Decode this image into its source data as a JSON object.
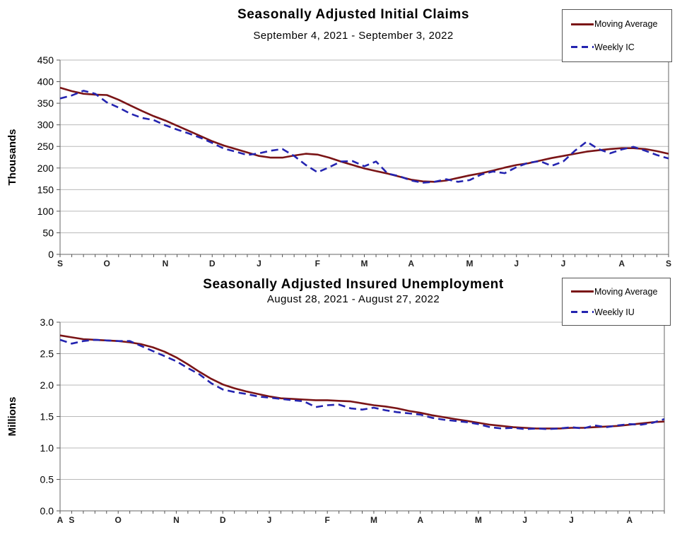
{
  "chart_data": [
    {
      "type": "line",
      "title": "Seasonally Adjusted Initial Claims",
      "subtitle": "September 4, 2021 - September 3, 2022",
      "ylabel": "Thousands",
      "ylim": [
        0,
        450
      ],
      "yticks": [
        0,
        50,
        100,
        150,
        200,
        250,
        300,
        350,
        400,
        450
      ],
      "ytick_labels": [
        "0",
        "50",
        "100",
        "150",
        "200",
        "250",
        "300",
        "350",
        "400",
        "450"
      ],
      "x_unit": "week",
      "n_points": 53,
      "month_labels": [
        "S",
        "O",
        "N",
        "D",
        "J",
        "F",
        "M",
        "A",
        "M",
        "J",
        "J",
        "A",
        "S"
      ],
      "month_week_index": [
        0,
        4,
        9,
        13,
        17,
        22,
        26,
        30,
        35,
        39,
        43,
        48,
        52
      ],
      "grid": true,
      "legend_position": "top-right",
      "series": [
        {
          "name": "Moving Average",
          "color": "#7a1416",
          "style": "solid",
          "values": [
            386,
            378,
            372,
            370,
            369,
            358,
            345,
            332,
            320,
            310,
            298,
            286,
            274,
            262,
            252,
            244,
            236,
            228,
            224,
            224,
            229,
            233,
            231,
            224,
            215,
            207,
            199,
            193,
            187,
            180,
            173,
            169,
            168,
            171,
            177,
            183,
            188,
            194,
            201,
            207,
            211,
            217,
            223,
            228,
            233,
            238,
            241,
            244,
            246,
            246,
            244,
            239,
            233
          ]
        },
        {
          "name": "Weekly IC",
          "color": "#2424b0",
          "style": "dashed",
          "values": [
            361,
            368,
            379,
            372,
            352,
            340,
            326,
            316,
            311,
            299,
            289,
            280,
            270,
            258,
            245,
            238,
            230,
            234,
            240,
            244,
            228,
            207,
            190,
            202,
            215,
            216,
            204,
            215,
            187,
            181,
            171,
            166,
            168,
            174,
            168,
            172,
            185,
            192,
            188,
            202,
            212,
            216,
            205,
            215,
            240,
            261,
            244,
            234,
            243,
            249,
            240,
            230,
            222
          ]
        }
      ]
    },
    {
      "type": "line",
      "title": "Seasonally Adjusted Insured Unemployment",
      "subtitle": "August 28, 2021 - August 27, 2022",
      "ylabel": "Millions",
      "ylim": [
        0,
        3
      ],
      "yticks": [
        0,
        0.5,
        1,
        1.5,
        2,
        2.5,
        3
      ],
      "ytick_labels": [
        "0.0",
        "0.5",
        "1.0",
        "1.5",
        "2.0",
        "2.5",
        "3.0"
      ],
      "x_unit": "week",
      "n_points": 53,
      "month_labels": [
        "A",
        "S",
        "O",
        "N",
        "D",
        "J",
        "F",
        "M",
        "A",
        "M",
        "J",
        "J",
        "A"
      ],
      "month_week_index": [
        0,
        1,
        5,
        10,
        14,
        18,
        23,
        27,
        31,
        36,
        40,
        44,
        49
      ],
      "grid": true,
      "legend_position": "top-right",
      "series": [
        {
          "name": "Moving Average",
          "color": "#7a1416",
          "style": "solid",
          "values": [
            2.79,
            2.76,
            2.73,
            2.72,
            2.71,
            2.7,
            2.68,
            2.65,
            2.6,
            2.53,
            2.44,
            2.33,
            2.21,
            2.1,
            2.01,
            1.95,
            1.9,
            1.86,
            1.82,
            1.79,
            1.78,
            1.77,
            1.76,
            1.76,
            1.75,
            1.74,
            1.71,
            1.68,
            1.66,
            1.63,
            1.59,
            1.56,
            1.52,
            1.49,
            1.46,
            1.43,
            1.4,
            1.37,
            1.35,
            1.33,
            1.32,
            1.31,
            1.31,
            1.31,
            1.32,
            1.32,
            1.33,
            1.34,
            1.35,
            1.37,
            1.39,
            1.41,
            1.42
          ]
        },
        {
          "name": "Weekly IU",
          "color": "#2424b0",
          "style": "dashed",
          "values": [
            2.72,
            2.66,
            2.7,
            2.72,
            2.71,
            2.7,
            2.7,
            2.62,
            2.54,
            2.46,
            2.38,
            2.27,
            2.17,
            2.03,
            1.93,
            1.89,
            1.86,
            1.82,
            1.8,
            1.78,
            1.76,
            1.74,
            1.65,
            1.68,
            1.69,
            1.63,
            1.61,
            1.64,
            1.6,
            1.57,
            1.55,
            1.53,
            1.48,
            1.45,
            1.43,
            1.41,
            1.38,
            1.33,
            1.31,
            1.32,
            1.3,
            1.31,
            1.3,
            1.31,
            1.33,
            1.31,
            1.36,
            1.33,
            1.36,
            1.38,
            1.37,
            1.4,
            1.46
          ]
        }
      ]
    }
  ]
}
